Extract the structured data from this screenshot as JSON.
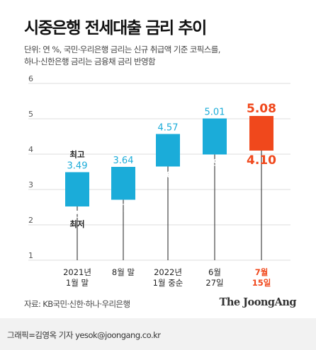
{
  "title": "시중은행 전세대출 금리 추이",
  "notes": [
    "단위: 연 %, 국민·우리은행 금리는 신규 취급액 기준 코픽스를,",
    "하나·신한은행 금리는 금융채 금리 반영함"
  ],
  "source": "자료: KB국민·신한·하나·우리은행",
  "brand": "The JoongAng",
  "credit": "그래픽=김영옥 기자 yesok@joongang.co.kr",
  "colors": {
    "bar": "#1bacd9",
    "highlight": "#f0481c",
    "axis_text": "#555555",
    "grid": "#dddddd"
  },
  "chart_data": {
    "type": "range-bar",
    "ylim": [
      1,
      6
    ],
    "yticks": [
      "1",
      "2",
      "3",
      "4",
      "5",
      "6"
    ],
    "categories": [
      [
        "2021년",
        "1월 말"
      ],
      [
        "8월 말"
      ],
      [
        "2022년",
        "1월 중순"
      ],
      [
        "6월",
        "27일"
      ],
      [
        "7월",
        "15일"
      ]
    ],
    "low_labels": [
      "2.52",
      "2.71",
      "3.65",
      "3.99",
      "4.10"
    ],
    "high_labels": [
      "3.49",
      "3.64",
      "4.57",
      "5.01",
      "5.08"
    ],
    "low": [
      2.52,
      2.71,
      3.65,
      3.99,
      4.1
    ],
    "high": [
      3.49,
      3.64,
      4.57,
      5.01,
      5.08
    ],
    "highlight_index": 4,
    "annotations": {
      "high": "최고",
      "low": "최저"
    }
  }
}
